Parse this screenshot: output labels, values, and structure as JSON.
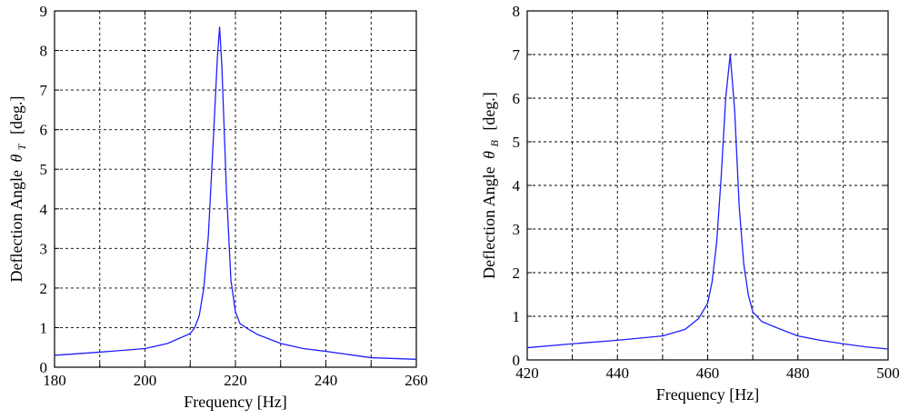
{
  "chart_data": [
    {
      "type": "line",
      "xlabel": "Frequency [Hz]",
      "ylabel_text": "Deflection Angle",
      "ylabel_symbol": "θ",
      "ylabel_subscript": "T",
      "ylabel_unit": "[deg.]",
      "xlim": [
        180,
        260
      ],
      "ylim": [
        0,
        9
      ],
      "xticks": [
        180,
        200,
        220,
        240,
        260
      ],
      "yticks": [
        0,
        1,
        2,
        3,
        4,
        5,
        6,
        7,
        8,
        9
      ],
      "grid": true,
      "color": "#1f1fff",
      "series": [
        {
          "x": [
            180,
            190,
            200,
            205,
            210,
            211,
            212,
            213,
            214,
            215,
            216,
            216.5,
            217,
            218,
            219,
            220,
            221,
            223,
            225,
            230,
            235,
            240,
            245,
            250,
            255,
            260
          ],
          "values": [
            0.3,
            0.38,
            0.47,
            0.6,
            0.85,
            1.0,
            1.3,
            2.0,
            3.3,
            5.5,
            7.8,
            8.6,
            7.6,
            4.5,
            2.2,
            1.4,
            1.1,
            0.95,
            0.82,
            0.6,
            0.47,
            0.4,
            0.32,
            0.24,
            0.22,
            0.2
          ]
        }
      ]
    },
    {
      "type": "line",
      "xlabel": "Frequency [Hz]",
      "ylabel_text": "Deflection Angle",
      "ylabel_symbol": "θ",
      "ylabel_subscript": "B",
      "ylabel_unit": "[deg.]",
      "xlim": [
        420,
        500
      ],
      "ylim": [
        0,
        8
      ],
      "xticks": [
        420,
        440,
        460,
        480,
        500
      ],
      "yticks": [
        0,
        1,
        2,
        3,
        4,
        5,
        6,
        7,
        8
      ],
      "grid": true,
      "color": "#1f1fff",
      "series": [
        {
          "x": [
            420,
            430,
            440,
            450,
            455,
            458,
            460,
            461,
            462,
            463,
            464,
            465,
            466,
            467,
            468,
            469,
            470,
            472,
            475,
            480,
            485,
            490,
            495,
            500
          ],
          "values": [
            0.28,
            0.37,
            0.45,
            0.55,
            0.7,
            0.95,
            1.3,
            1.8,
            2.7,
            4.2,
            6.0,
            7.0,
            5.7,
            3.5,
            2.2,
            1.5,
            1.1,
            0.88,
            0.75,
            0.55,
            0.45,
            0.37,
            0.3,
            0.25
          ]
        }
      ]
    }
  ]
}
